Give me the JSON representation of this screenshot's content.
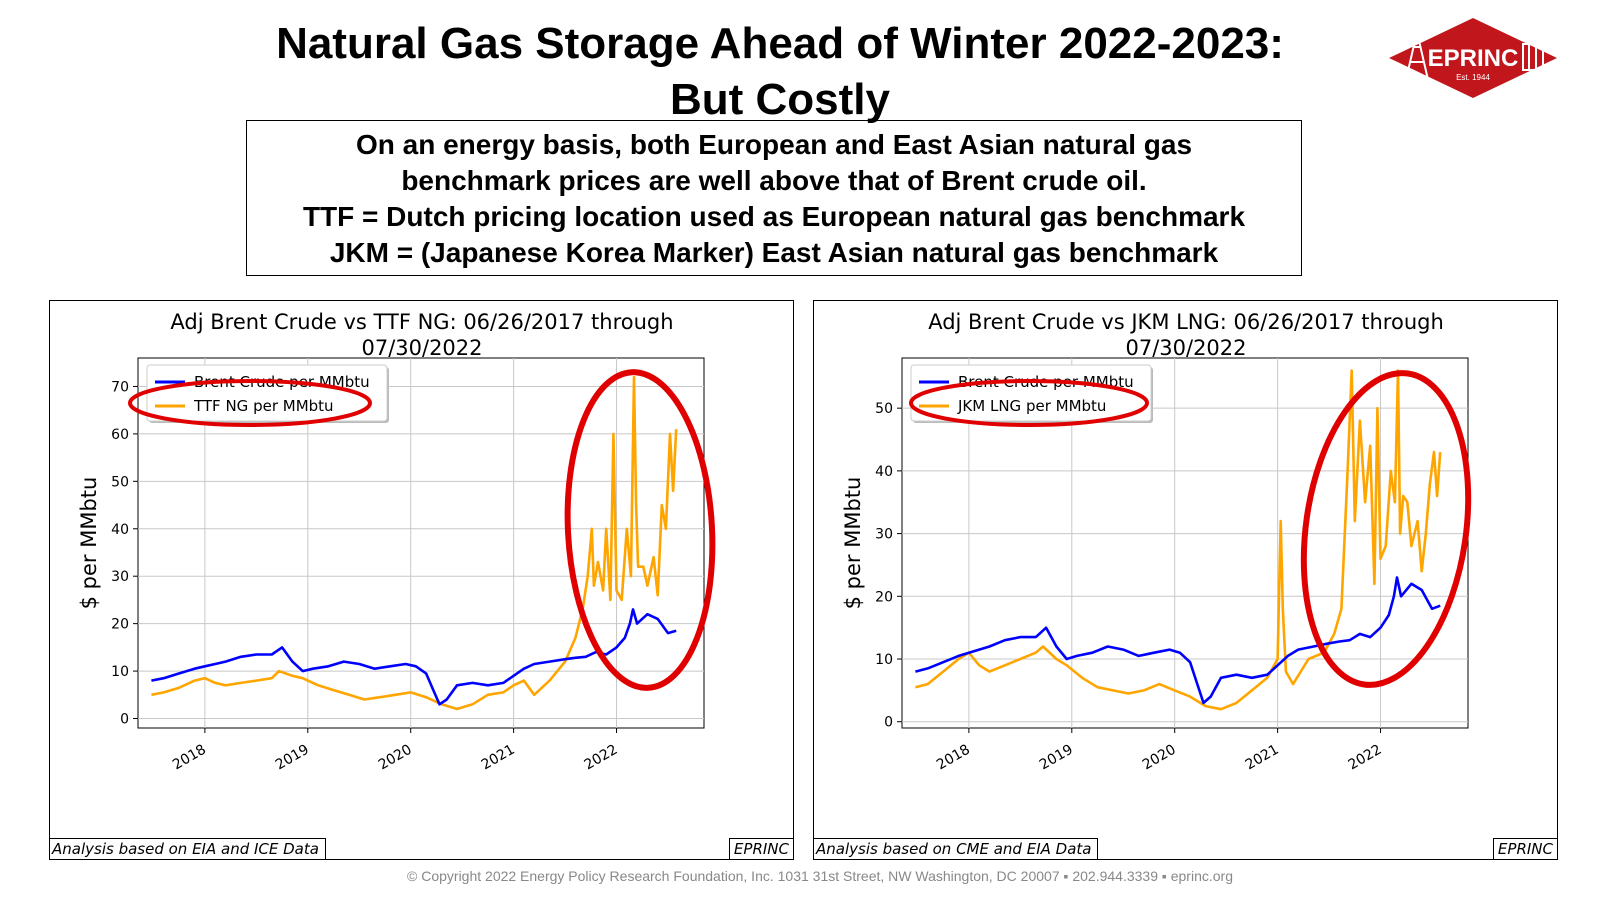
{
  "page": {
    "title_line1": "Natural Gas Storage Ahead of Winter 2022-2023:",
    "title_line2": "But Costly",
    "logo_text": "EPRINC",
    "logo_est": "Est. 1944",
    "callout": [
      "On an energy basis, both European and East Asian natural gas",
      "benchmark prices are well above that of Brent crude oil.",
      "TTF = Dutch pricing location used as European natural gas benchmark",
      "JKM = (Japanese Korea Marker) East Asian natural gas benchmark"
    ],
    "footer": "© Copyright 2022 Energy Policy Research Foundation, Inc. 1031 31st Street, NW Washington, DC 20007 ▪ 202.944.3339 ▪ eprinc.org",
    "colors": {
      "brent": "#0000ff",
      "gas": "#ffa500",
      "highlight": "#e00000",
      "logo": "#c0161c"
    }
  },
  "chart_data": [
    {
      "type": "line",
      "title_line1": "Adj Brent Crude vs TTF NG: 06/26/2017 through",
      "title_line2": "07/30/2022",
      "ylabel": "$ per MMbtu",
      "xlabel": "",
      "xlim": [
        2017.35,
        2022.85
      ],
      "ylim": [
        -2,
        76
      ],
      "yticks": [
        0,
        10,
        20,
        30,
        40,
        50,
        60,
        70
      ],
      "xticks": [
        "2018",
        "2019",
        "2020",
        "2021",
        "2022"
      ],
      "grid": true,
      "legend_position": "upper-left",
      "source_note": "Analysis based on EIA and ICE Data",
      "brand_tag": "EPRINC",
      "series": [
        {
          "name": "Brent Crude per MMbtu",
          "color": "#0000ff",
          "x": [
            2017.48,
            2017.6,
            2017.75,
            2017.9,
            2018.0,
            2018.1,
            2018.2,
            2018.35,
            2018.5,
            2018.65,
            2018.75,
            2018.85,
            2018.95,
            2019.05,
            2019.2,
            2019.35,
            2019.5,
            2019.65,
            2019.8,
            2019.95,
            2020.05,
            2020.15,
            2020.22,
            2020.28,
            2020.35,
            2020.45,
            2020.6,
            2020.75,
            2020.9,
            2021.0,
            2021.1,
            2021.2,
            2021.35,
            2021.5,
            2021.6,
            2021.7,
            2021.8,
            2021.9,
            2022.0,
            2022.08,
            2022.13,
            2022.16,
            2022.2,
            2022.3,
            2022.4,
            2022.5,
            2022.58
          ],
          "y": [
            8,
            8.5,
            9.5,
            10.5,
            11,
            11.5,
            12,
            13,
            13.5,
            13.5,
            15,
            12,
            10,
            10.5,
            11,
            12,
            11.5,
            10.5,
            11,
            11.5,
            11,
            9.5,
            6,
            3,
            4,
            7,
            7.5,
            7,
            7.5,
            9,
            10.5,
            11.5,
            12,
            12.5,
            12.8,
            13,
            14,
            13.5,
            15,
            17,
            20,
            23,
            20,
            22,
            21,
            18,
            18.5
          ]
        },
        {
          "name": "TTF NG per MMbtu",
          "color": "#ffa500",
          "x": [
            2017.48,
            2017.6,
            2017.75,
            2017.9,
            2018.0,
            2018.1,
            2018.2,
            2018.35,
            2018.5,
            2018.65,
            2018.72,
            2018.85,
            2018.95,
            2019.1,
            2019.25,
            2019.4,
            2019.55,
            2019.7,
            2019.85,
            2020.0,
            2020.15,
            2020.3,
            2020.45,
            2020.6,
            2020.75,
            2020.9,
            2021.0,
            2021.1,
            2021.2,
            2021.35,
            2021.5,
            2021.6,
            2021.67,
            2021.72,
            2021.76,
            2021.78,
            2021.82,
            2021.87,
            2021.9,
            2021.94,
            2021.97,
            2022.0,
            2022.05,
            2022.1,
            2022.14,
            2022.17,
            2022.19,
            2022.21,
            2022.26,
            2022.3,
            2022.36,
            2022.4,
            2022.44,
            2022.48,
            2022.52,
            2022.55,
            2022.58
          ],
          "y": [
            5,
            5.5,
            6.5,
            8,
            8.5,
            7.5,
            7,
            7.5,
            8,
            8.5,
            10,
            9,
            8.5,
            7,
            6,
            5,
            4,
            4.5,
            5,
            5.5,
            4.5,
            3,
            2,
            3,
            5,
            5.5,
            7,
            8,
            5,
            8,
            12,
            17,
            23,
            30,
            40,
            28,
            33,
            27,
            40,
            25,
            60,
            27,
            25,
            40,
            30,
            72,
            45,
            32,
            32,
            28,
            34,
            26,
            45,
            40,
            60,
            48,
            61
          ]
        }
      ]
    },
    {
      "type": "line",
      "title_line1": "Adj Brent Crude vs JKM LNG: 06/26/2017 through",
      "title_line2": "07/30/2022",
      "ylabel": "$ per MMbtu",
      "xlabel": "",
      "xlim": [
        2017.35,
        2022.85
      ],
      "ylim": [
        -1,
        58
      ],
      "yticks": [
        0,
        10,
        20,
        30,
        40,
        50
      ],
      "xticks": [
        "2018",
        "2019",
        "2020",
        "2021",
        "2022"
      ],
      "grid": true,
      "legend_position": "upper-left",
      "source_note": "Analysis based on CME and EIA Data",
      "brand_tag": "EPRINC",
      "series": [
        {
          "name": "Brent Crude per MMbtu",
          "color": "#0000ff",
          "x": [
            2017.48,
            2017.6,
            2017.75,
            2017.9,
            2018.0,
            2018.1,
            2018.2,
            2018.35,
            2018.5,
            2018.65,
            2018.75,
            2018.85,
            2018.95,
            2019.05,
            2019.2,
            2019.35,
            2019.5,
            2019.65,
            2019.8,
            2019.95,
            2020.05,
            2020.15,
            2020.22,
            2020.28,
            2020.35,
            2020.45,
            2020.6,
            2020.75,
            2020.9,
            2021.0,
            2021.1,
            2021.2,
            2021.35,
            2021.5,
            2021.6,
            2021.7,
            2021.8,
            2021.9,
            2022.0,
            2022.08,
            2022.13,
            2022.16,
            2022.2,
            2022.3,
            2022.4,
            2022.5,
            2022.58
          ],
          "y": [
            8,
            8.5,
            9.5,
            10.5,
            11,
            11.5,
            12,
            13,
            13.5,
            13.5,
            15,
            12,
            10,
            10.5,
            11,
            12,
            11.5,
            10.5,
            11,
            11.5,
            11,
            9.5,
            6,
            3,
            4,
            7,
            7.5,
            7,
            7.5,
            9,
            10.5,
            11.5,
            12,
            12.5,
            12.8,
            13,
            14,
            13.5,
            15,
            17,
            20,
            23,
            20,
            22,
            21,
            18,
            18.5
          ]
        },
        {
          "name": "JKM LNG per MMbtu",
          "color": "#ffa500",
          "x": [
            2017.48,
            2017.6,
            2017.75,
            2017.9,
            2018.0,
            2018.1,
            2018.2,
            2018.35,
            2018.5,
            2018.65,
            2018.72,
            2018.85,
            2018.95,
            2019.1,
            2019.25,
            2019.4,
            2019.55,
            2019.7,
            2019.85,
            2020.0,
            2020.15,
            2020.3,
            2020.45,
            2020.6,
            2020.75,
            2020.9,
            2021.0,
            2021.03,
            2021.05,
            2021.08,
            2021.15,
            2021.3,
            2021.45,
            2021.55,
            2021.62,
            2021.68,
            2021.72,
            2021.75,
            2021.8,
            2021.85,
            2021.9,
            2021.94,
            2021.97,
            2022.0,
            2022.05,
            2022.1,
            2022.14,
            2022.17,
            2022.19,
            2022.22,
            2022.26,
            2022.3,
            2022.36,
            2022.4,
            2022.44,
            2022.48,
            2022.52,
            2022.55,
            2022.58
          ],
          "y": [
            5.5,
            6,
            8,
            10,
            11,
            9,
            8,
            9,
            10,
            11,
            12,
            10,
            9,
            7,
            5.5,
            5,
            4.5,
            5,
            6,
            5,
            4,
            2.5,
            2,
            3,
            5,
            7,
            10,
            32,
            18,
            8,
            6,
            10,
            11,
            14,
            18,
            40,
            56,
            32,
            48,
            35,
            44,
            22,
            50,
            26,
            28,
            40,
            35,
            56,
            30,
            36,
            35,
            28,
            32,
            24,
            30,
            38,
            43,
            36,
            43
          ]
        }
      ]
    }
  ]
}
